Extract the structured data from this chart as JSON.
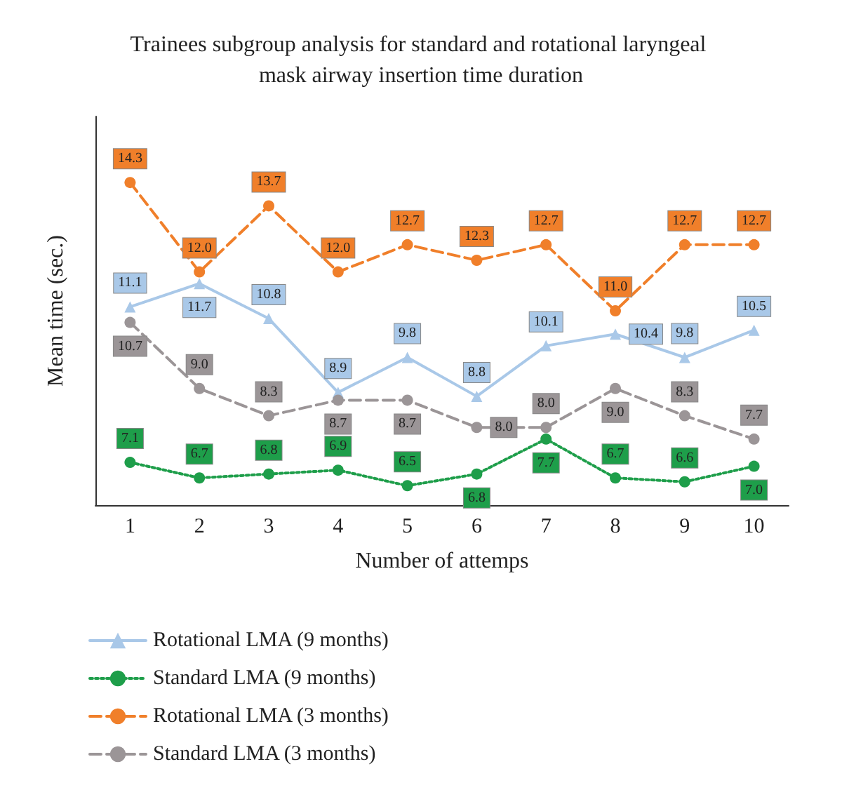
{
  "chart_data": {
    "type": "line",
    "title": "Trainees subgroup analysis for standard and rotational laryngeal mask airway insertion time duration",
    "xlabel": "Number of attemps",
    "ylabel": "Mean time (sec.)",
    "categories": [
      "1",
      "2",
      "3",
      "4",
      "5",
      "6",
      "7",
      "8",
      "9",
      "10"
    ],
    "grid": false,
    "legend": "bottom",
    "series": [
      {
        "name": "Rotational LMA (9 months)",
        "color": "#a9c8e8",
        "marker": "triangle",
        "line_style": "solid",
        "values": [
          11.1,
          11.7,
          10.8,
          8.9,
          9.8,
          8.8,
          10.1,
          10.4,
          9.8,
          10.5
        ],
        "value_labels": [
          "11.1",
          "11.7",
          "10.8",
          "8.9",
          "9.8",
          "8.8",
          "10.1",
          "10.4",
          "9.8",
          "10.5"
        ]
      },
      {
        "name": "Standard LMA (9 months)",
        "color": "#1e9e4a",
        "marker": "circle",
        "line_style": "dotted",
        "values": [
          7.1,
          6.7,
          6.8,
          6.9,
          6.5,
          6.8,
          7.7,
          6.7,
          6.6,
          7.0
        ],
        "value_labels": [
          "7.1",
          "6.7",
          "6.8",
          "6.9",
          "6.5",
          "6.8",
          "7.7",
          "6.7",
          "6.6",
          "7.0"
        ]
      },
      {
        "name": "Rotational LMA (3 months)",
        "color": "#f07f2a",
        "marker": "circle",
        "line_style": "dashed",
        "values": [
          14.3,
          12.0,
          13.7,
          12.0,
          12.7,
          12.3,
          12.7,
          11.0,
          12.7,
          12.7
        ],
        "value_labels": [
          "14.3",
          "12.0",
          "13.7",
          "12.0",
          "12.7",
          "12.3",
          "12.7",
          "11.0",
          "12.7",
          "12.7"
        ]
      },
      {
        "name": "Standard LMA (3 months)",
        "color": "#9b9597",
        "marker": "circle",
        "line_style": "dashed",
        "values": [
          10.7,
          9.0,
          8.3,
          8.7,
          8.7,
          8.0,
          8.0,
          9.0,
          8.3,
          7.7
        ],
        "value_labels": [
          "10.7",
          "9.0",
          "8.3",
          "8.7",
          "8.7",
          "8.0",
          "8.0",
          "9.0",
          "8.3",
          "7.7"
        ]
      }
    ]
  }
}
